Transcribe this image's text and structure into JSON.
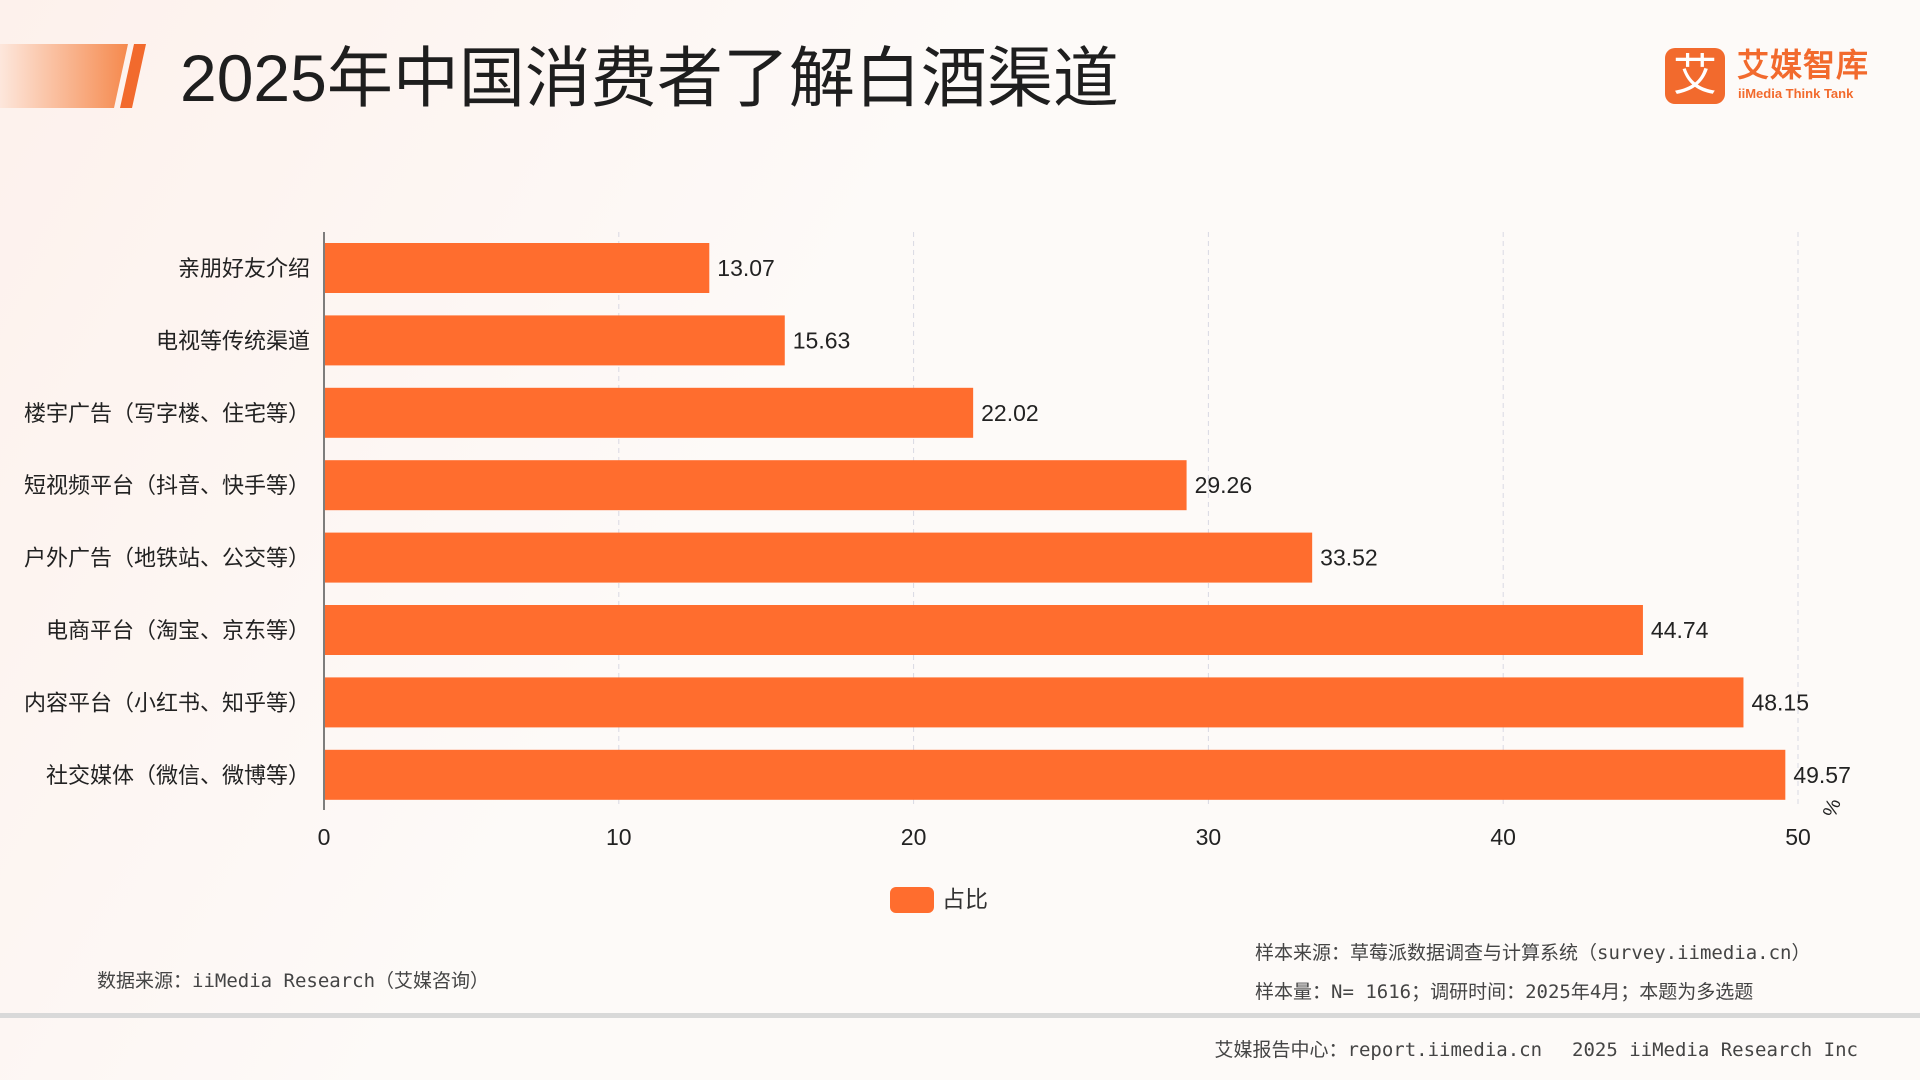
{
  "title": "2025年中国消费者了解白酒渠道",
  "logo": {
    "cn": "艾媒智库",
    "en": "iiMedia Think Tank",
    "mark": "艾"
  },
  "colors": {
    "bar": "#ff6d2e",
    "accent": "#f26a2d",
    "grid": "#d9d9e3",
    "axis": "#555555"
  },
  "chart_data": {
    "type": "bar",
    "orientation": "horizontal",
    "categories": [
      "亲朋好友介绍",
      "电视等传统渠道",
      "楼宇广告（写字楼、住宅等）",
      "短视频平台（抖音、快手等）",
      "户外广告（地铁站、公交等）",
      "电商平台（淘宝、京东等）",
      "内容平台（小红书、知乎等）",
      "社交媒体（微信、微博等）"
    ],
    "series": [
      {
        "name": "占比",
        "values": [
          13.07,
          15.63,
          22.02,
          29.26,
          33.52,
          44.74,
          48.15,
          49.57
        ]
      }
    ],
    "xlim": [
      0,
      50
    ],
    "xticks": [
      0,
      10,
      20,
      30,
      40,
      50
    ],
    "unit": "%",
    "grid": "vertical-dashed",
    "legend_position": "bottom-center"
  },
  "notes": {
    "data_source": "数据来源：iiMedia Research（艾媒咨询）",
    "sample_source": "样本来源：草莓派数据调查与计算系统（survey.iimedia.cn）",
    "sample_size": "样本量：N= 1616；调研时间：2025年4月；本题为多选题"
  },
  "footer": {
    "report_center": "艾媒报告中心：report.iimedia.cn",
    "copyright": "2025 iiMedia Research Inc"
  }
}
